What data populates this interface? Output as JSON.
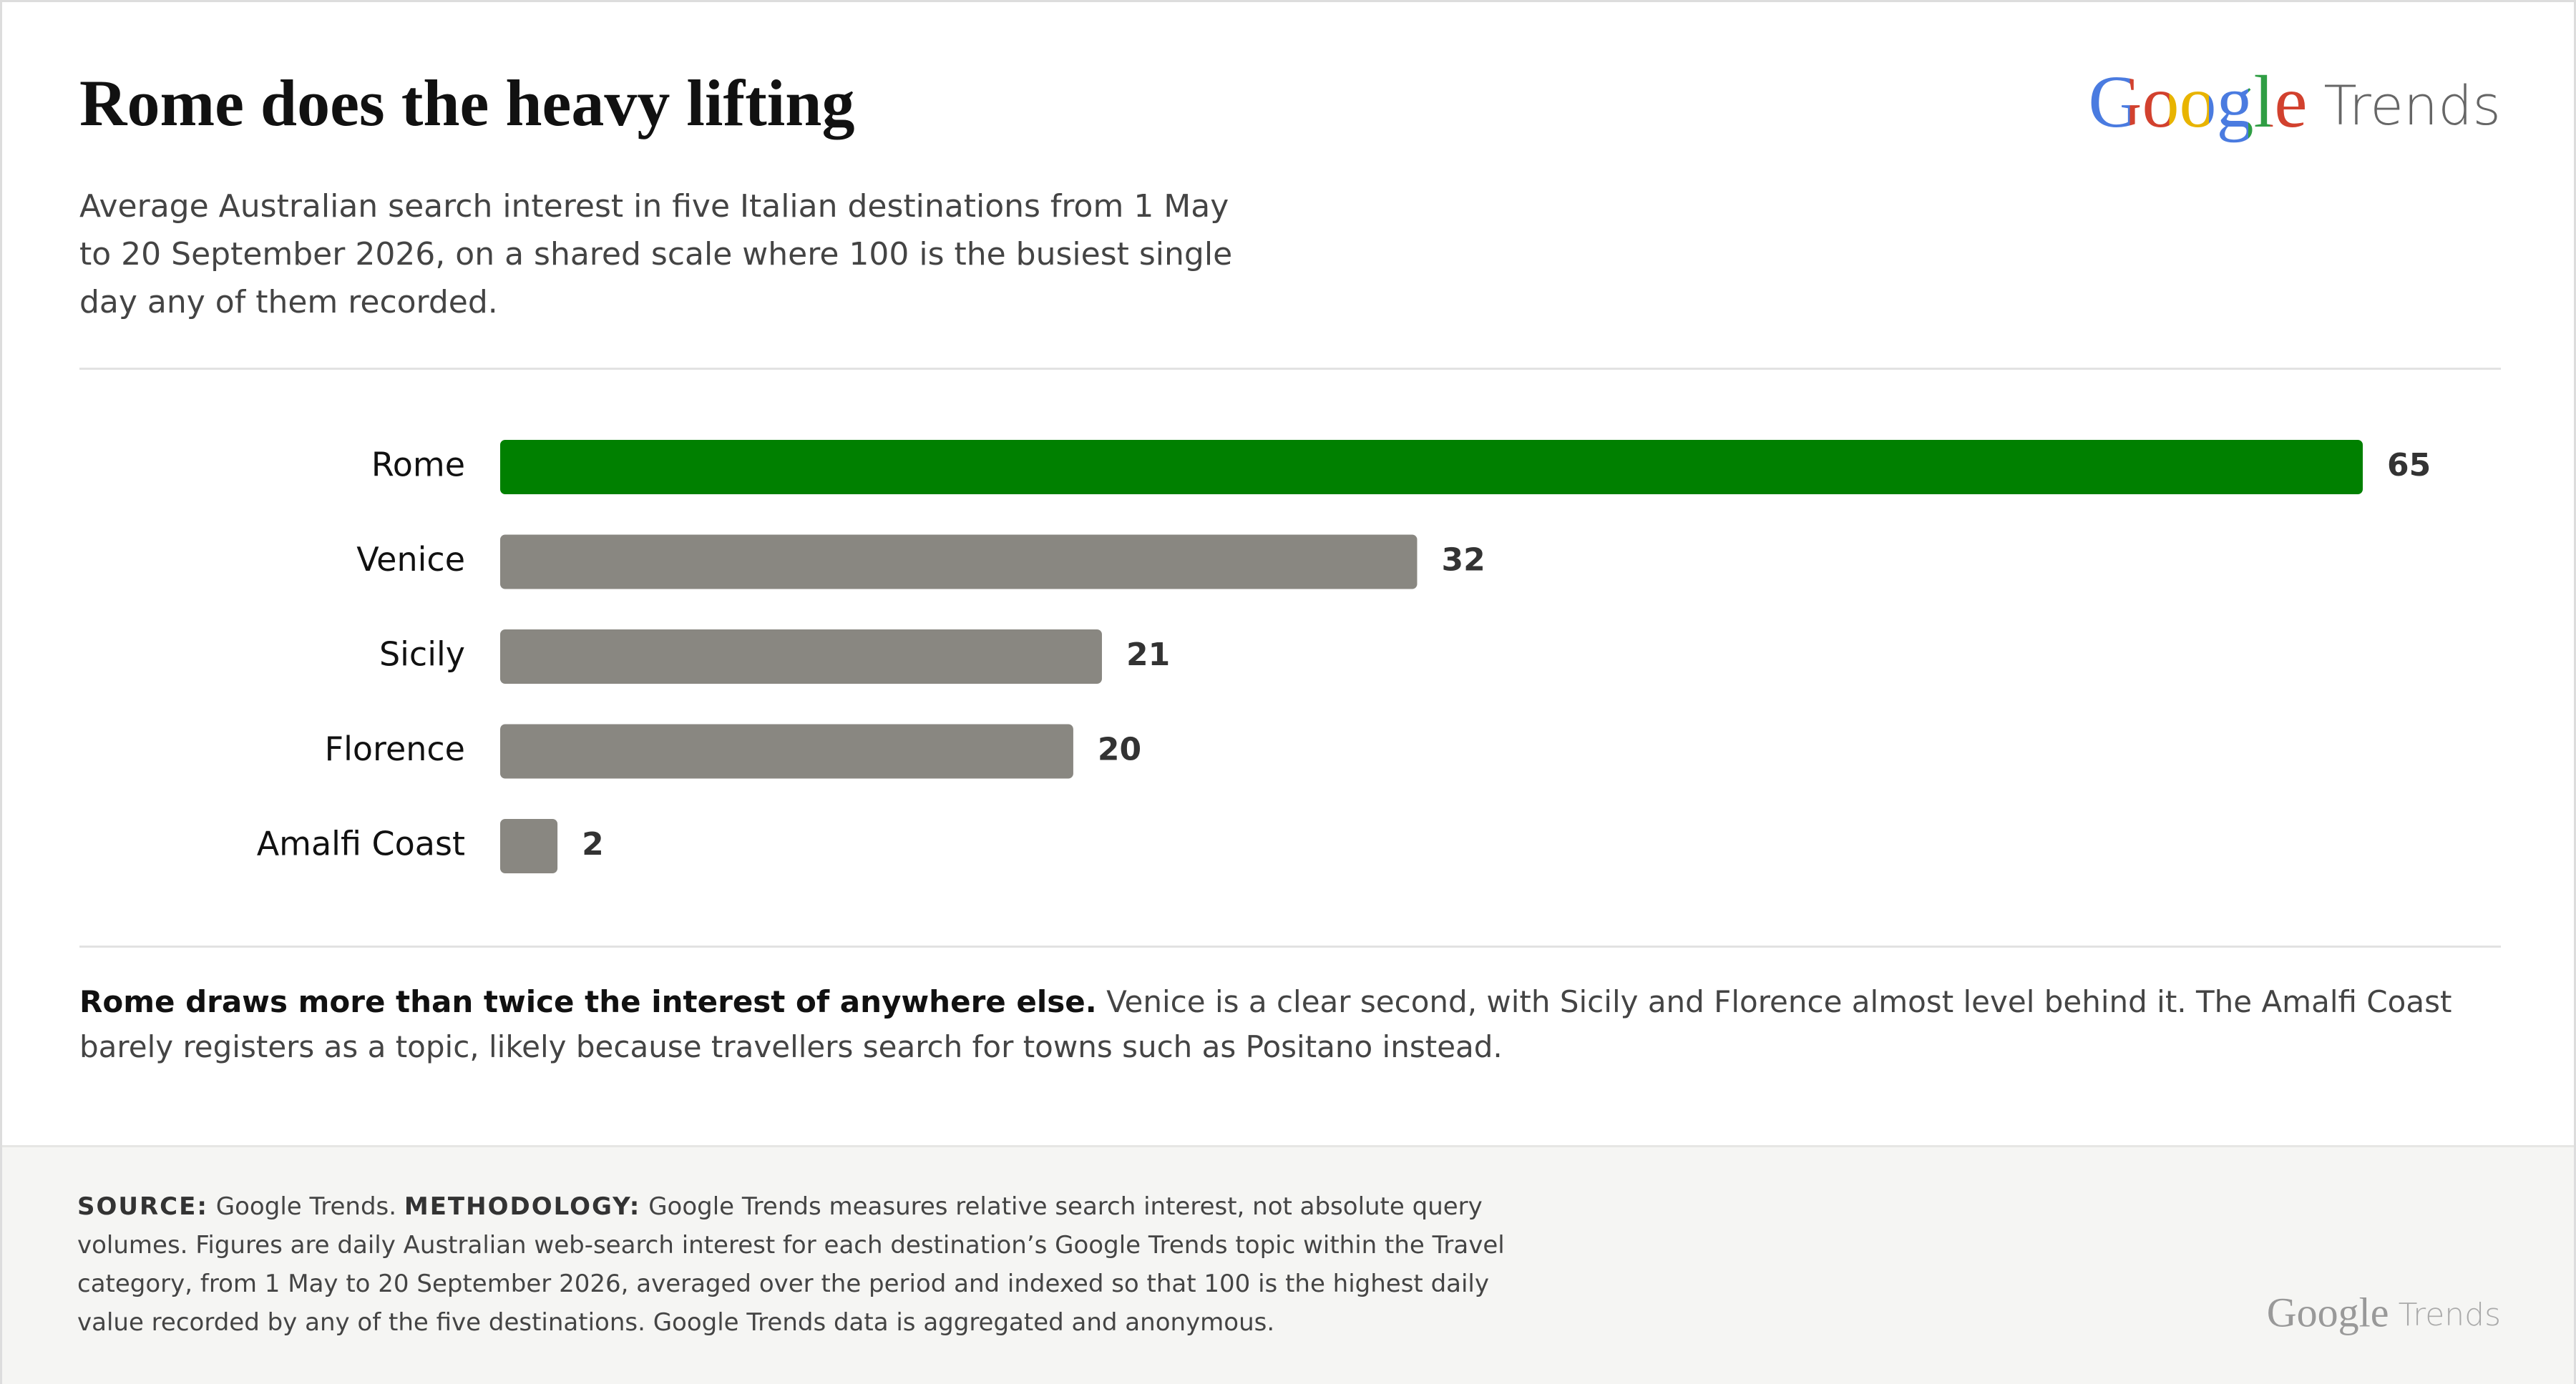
{
  "header": {
    "title": "Rome does the heavy lifting",
    "subtitle": "Average Australian search interest in five Italian destinations from 1 May to 20 September 2026, on a shared scale where 100 is the busiest single day any of them recorded.",
    "logo": {
      "brand": "Google",
      "product": "Trends"
    }
  },
  "chart_data": {
    "type": "bar",
    "orientation": "horizontal",
    "categories": [
      "Rome",
      "Venice",
      "Sicily",
      "Florence",
      "Amalfi Coast"
    ],
    "values": [
      65,
      32,
      21,
      20,
      2
    ],
    "colors": [
      "#008000",
      "#898781",
      "#898781",
      "#898781",
      "#898781"
    ]
  },
  "note": {
    "lead": "Rome draws more than twice the interest of anywhere else.",
    "text": "Venice is a clear second, with Sicily and Florence almost level behind it. The Amalfi Coast barely registers as a topic, likely because travellers search for towns such as Positano instead."
  },
  "footer": {
    "source_label": "SOURCE:",
    "source": "Google Trends.",
    "methodology_label": "METHODOLOGY:",
    "methodology": "Google Trends measures relative search interest, not absolute query volumes. Figures are daily Australian web-search interest for each destination’s Google Trends topic within the Travel category, from 1 May to 20 September 2026, averaged over the period and indexed so that 100 is the highest daily value recorded by any of the five destinations. Google Trends data is aggregated and anonymous.",
    "logo": {
      "brand": "Google",
      "product": "Trends"
    }
  }
}
